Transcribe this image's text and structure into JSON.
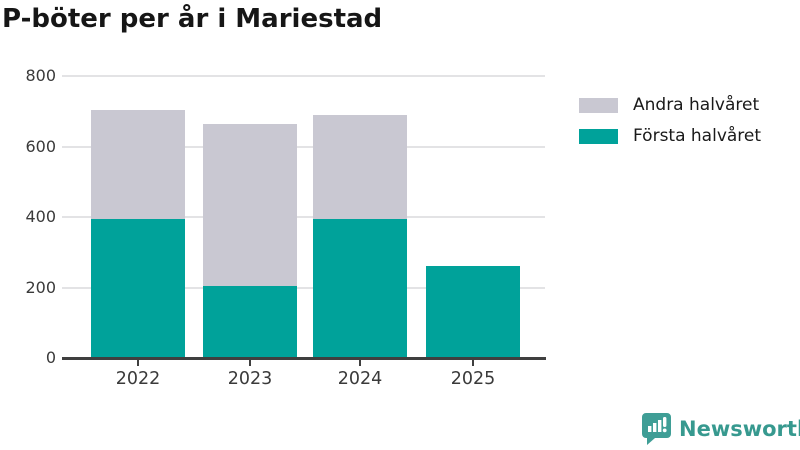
{
  "title": "P-böter per år i Mariestad",
  "chart_data": {
    "type": "bar",
    "stacked": true,
    "title": "P-böter per år i Mariestad",
    "categories": [
      "2022",
      "2023",
      "2024",
      "2025"
    ],
    "series": [
      {
        "name": "Första halvåret",
        "color": "#00a29a",
        "values": [
          395,
          205,
          395,
          260
        ]
      },
      {
        "name": "Andra halvåret",
        "color": "#c9c8d2",
        "values": [
          310,
          460,
          295,
          0
        ]
      }
    ],
    "totals": [
      705,
      665,
      690,
      260
    ],
    "xlabel": "",
    "ylabel": "",
    "ylim": [
      0,
      800
    ],
    "yticks": [
      0,
      200,
      400,
      600,
      800
    ],
    "grid": "horizontal",
    "legend_position": "top-right",
    "legend_order": [
      "Andra halvåret",
      "Första halvåret"
    ]
  },
  "legend": {
    "items": [
      {
        "label": "Andra halvåret",
        "color": "#c9c8d2"
      },
      {
        "label": "Första halvåret",
        "color": "#00a29a"
      }
    ]
  },
  "colors": {
    "first_half": "#00a29a",
    "second_half": "#c9c8d2",
    "gridline": "#e3e3e5",
    "axis_line": "#3f3f3f",
    "axis_text": "#3a3a3a",
    "title_text": "#161616",
    "brand_teal": "#37998f"
  },
  "footer": {
    "brand": "Newsworthy"
  }
}
